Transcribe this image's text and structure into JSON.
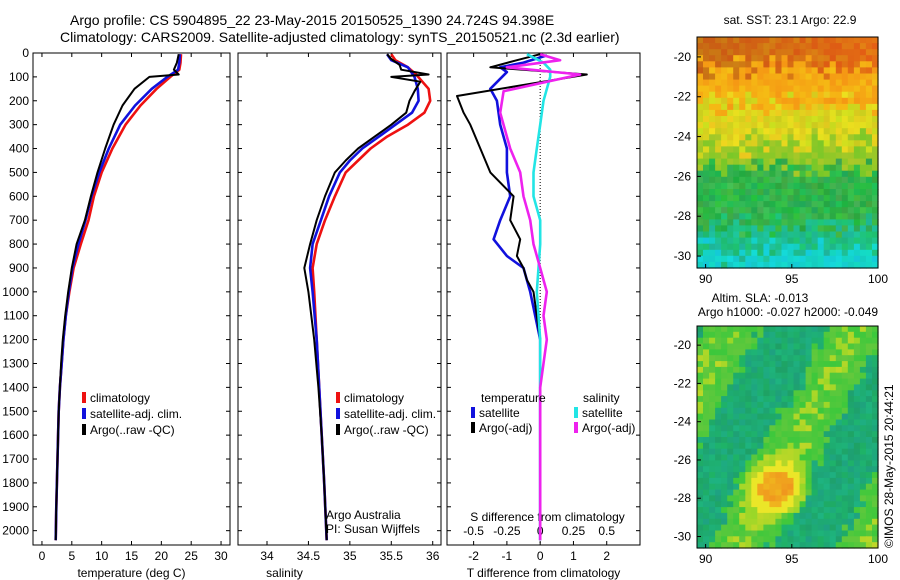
{
  "header": {
    "line1": "Argo profile: CS 5904895_22 23-May-2015 20150525_1390 24.724S 94.398E",
    "line2": "Climatology: CARS2009. Satellite-adjusted climatology: synTS_20150521.nc (2.3d earlier)"
  },
  "colors": {
    "red": "#ee1111",
    "blue": "#1111dd",
    "black": "#000000",
    "cyan": "#22e5e5",
    "magenta": "#ee22ee"
  },
  "chart_data": [
    {
      "id": "temperature",
      "type": "line",
      "xlabel": "temperature (deg C)",
      "xlim": [
        -1.5,
        31.5
      ],
      "ylim": [
        0,
        2060
      ],
      "xticks": [
        0,
        5,
        10,
        15,
        20,
        25,
        30
      ],
      "yticks": [
        0,
        100,
        200,
        300,
        400,
        500,
        600,
        700,
        800,
        900,
        1000,
        1100,
        1200,
        1300,
        1400,
        1500,
        1600,
        1700,
        1800,
        1900,
        2000
      ],
      "legend": {
        "placement": "middle-left",
        "entries": [
          "climatology",
          "satellite-adj. clim.",
          "Argo(..raw -QC)"
        ]
      },
      "series": [
        {
          "name": "climatology",
          "color": "red",
          "points": [
            [
              23.3,
              5
            ],
            [
              23.2,
              40
            ],
            [
              23.0,
              70
            ],
            [
              21.5,
              100
            ],
            [
              19.2,
              150
            ],
            [
              16.5,
              220
            ],
            [
              14.0,
              300
            ],
            [
              11.8,
              400
            ],
            [
              10.0,
              500
            ],
            [
              8.7,
              600
            ],
            [
              7.8,
              700
            ],
            [
              6.5,
              800
            ],
            [
              5.3,
              900
            ],
            [
              4.6,
              1000
            ],
            [
              4.0,
              1100
            ],
            [
              3.6,
              1200
            ],
            [
              3.3,
              1300
            ],
            [
              3.0,
              1400
            ],
            [
              2.8,
              1500
            ],
            [
              2.6,
              1700
            ],
            [
              2.4,
              1900
            ],
            [
              2.3,
              2040
            ]
          ]
        },
        {
          "name": "satellite-adj. clim.",
          "color": "blue",
          "points": [
            [
              23.1,
              5
            ],
            [
              23.0,
              40
            ],
            [
              22.8,
              70
            ],
            [
              21.0,
              100
            ],
            [
              18.4,
              150
            ],
            [
              15.6,
              220
            ],
            [
              13.1,
              300
            ],
            [
              11.2,
              400
            ],
            [
              9.6,
              500
            ],
            [
              8.3,
              600
            ],
            [
              7.3,
              700
            ],
            [
              6.1,
              800
            ],
            [
              5.1,
              900
            ],
            [
              4.5,
              1000
            ],
            [
              4.0,
              1100
            ],
            [
              3.6,
              1200
            ],
            [
              3.3,
              1300
            ],
            [
              3.0,
              1400
            ],
            [
              2.8,
              1500
            ],
            [
              2.6,
              1700
            ],
            [
              2.4,
              1900
            ],
            [
              2.3,
              2040
            ]
          ]
        },
        {
          "name": "Argo(..raw -QC)",
          "color": "black",
          "points": [
            [
              22.9,
              5
            ],
            [
              22.6,
              40
            ],
            [
              22.1,
              70
            ],
            [
              22.9,
              90
            ],
            [
              18.0,
              100
            ],
            [
              15.5,
              150
            ],
            [
              13.5,
              220
            ],
            [
              12.0,
              300
            ],
            [
              10.6,
              400
            ],
            [
              9.3,
              500
            ],
            [
              8.2,
              600
            ],
            [
              7.2,
              700
            ],
            [
              5.8,
              800
            ],
            [
              5.0,
              900
            ],
            [
              4.4,
              1000
            ],
            [
              3.9,
              1100
            ],
            [
              3.5,
              1200
            ],
            [
              3.2,
              1300
            ],
            [
              3.0,
              1400
            ],
            [
              2.8,
              1500
            ],
            [
              2.6,
              1700
            ],
            [
              2.4,
              1900
            ],
            [
              2.3,
              2040
            ]
          ]
        }
      ]
    },
    {
      "id": "salinity",
      "type": "line",
      "xlabel": "salinity",
      "xlim": [
        33.65,
        36.1
      ],
      "ylim": [
        0,
        2060
      ],
      "xticks": [
        34,
        34.5,
        35,
        35.5,
        36
      ],
      "legend": {
        "placement": "middle-right",
        "entries": [
          "climatology",
          "satellite-adj. clim.",
          "Argo(..raw -QC)"
        ]
      },
      "annotations": [
        "Argo Australia",
        "PI: Susan Wijffels"
      ],
      "series": [
        {
          "name": "climatology",
          "color": "red",
          "points": [
            [
              35.5,
              5
            ],
            [
              35.55,
              30
            ],
            [
              35.7,
              60
            ],
            [
              35.8,
              90
            ],
            [
              35.95,
              150
            ],
            [
              35.97,
              200
            ],
            [
              35.9,
              250
            ],
            [
              35.7,
              300
            ],
            [
              35.45,
              350
            ],
            [
              35.25,
              400
            ],
            [
              35.1,
              450
            ],
            [
              34.95,
              500
            ],
            [
              34.82,
              600
            ],
            [
              34.7,
              700
            ],
            [
              34.6,
              800
            ],
            [
              34.55,
              900
            ],
            [
              34.57,
              1000
            ],
            [
              34.6,
              1200
            ],
            [
              34.63,
              1400
            ],
            [
              34.66,
              1600
            ],
            [
              34.69,
              1800
            ],
            [
              34.72,
              2040
            ]
          ]
        },
        {
          "name": "satellite-adj. clim.",
          "color": "blue",
          "points": [
            [
              35.45,
              5
            ],
            [
              35.5,
              30
            ],
            [
              35.7,
              60
            ],
            [
              35.78,
              100
            ],
            [
              35.82,
              150
            ],
            [
              35.83,
              200
            ],
            [
              35.75,
              250
            ],
            [
              35.55,
              300
            ],
            [
              35.35,
              350
            ],
            [
              35.15,
              400
            ],
            [
              35.0,
              450
            ],
            [
              34.88,
              500
            ],
            [
              34.75,
              600
            ],
            [
              34.65,
              700
            ],
            [
              34.55,
              800
            ],
            [
              34.52,
              900
            ],
            [
              34.55,
              1000
            ],
            [
              34.6,
              1200
            ],
            [
              34.63,
              1400
            ],
            [
              34.66,
              1600
            ],
            [
              34.69,
              1800
            ],
            [
              34.72,
              2040
            ]
          ]
        },
        {
          "name": "Argo(..raw -QC)",
          "color": "black",
          "points": [
            [
              35.45,
              5
            ],
            [
              35.5,
              25
            ],
            [
              35.6,
              50
            ],
            [
              35.62,
              70
            ],
            [
              35.95,
              90
            ],
            [
              35.5,
              100
            ],
            [
              35.85,
              120
            ],
            [
              35.78,
              160
            ],
            [
              35.72,
              200
            ],
            [
              35.68,
              250
            ],
            [
              35.5,
              300
            ],
            [
              35.3,
              350
            ],
            [
              35.1,
              400
            ],
            [
              34.95,
              450
            ],
            [
              34.82,
              500
            ],
            [
              34.7,
              600
            ],
            [
              34.6,
              700
            ],
            [
              34.52,
              800
            ],
            [
              34.45,
              900
            ],
            [
              34.5,
              1000
            ],
            [
              34.57,
              1200
            ],
            [
              34.62,
              1400
            ],
            [
              34.66,
              1600
            ],
            [
              34.69,
              1800
            ],
            [
              34.72,
              2040
            ]
          ]
        }
      ]
    },
    {
      "id": "difference",
      "type": "line",
      "xlabel": "T difference from climatology",
      "xlabel_top": "S difference from climatology",
      "xlim": [
        -2.8,
        3.0
      ],
      "ylim": [
        0,
        2060
      ],
      "xticks": [
        -2,
        -1,
        0,
        1,
        2
      ],
      "xticks_s": [
        {
          "v": -2,
          "label": "-0.5"
        },
        {
          "v": -1,
          "label": "-0.25"
        },
        {
          "v": 0,
          "label": "0"
        },
        {
          "v": 1,
          "label": "0.25"
        },
        {
          "v": 2,
          "label": "0.5"
        }
      ],
      "legend": {
        "placement": "middle",
        "groups": [
          {
            "title": "temperature",
            "entries": [
              "satellite",
              "Argo(-adj)"
            ]
          },
          {
            "title": "salinity",
            "entries": [
              "satellite",
              "Argo(-adj)"
            ]
          }
        ]
      },
      "series": [
        {
          "name": "temperature satellite",
          "color": "blue",
          "points": [
            [
              0.2,
              10
            ],
            [
              -0.5,
              40
            ],
            [
              -1.2,
              60
            ],
            [
              -1.0,
              80
            ],
            [
              -1.5,
              150
            ],
            [
              -1.3,
              200
            ],
            [
              -1.2,
              300
            ],
            [
              -1.0,
              400
            ],
            [
              -1.0,
              500
            ],
            [
              -0.9,
              600
            ],
            [
              -1.2,
              700
            ],
            [
              -1.4,
              780
            ],
            [
              -1.0,
              850
            ],
            [
              -0.5,
              900
            ],
            [
              -0.3,
              1000
            ],
            [
              0,
              1200
            ],
            [
              0,
              2040
            ]
          ]
        },
        {
          "name": "temperature Argo(-adj)",
          "color": "black",
          "points": [
            [
              0,
              5
            ],
            [
              -0.7,
              30
            ],
            [
              -1.5,
              60
            ],
            [
              1.4,
              90
            ],
            [
              -2.5,
              180
            ],
            [
              -2.3,
              250
            ],
            [
              -2.1,
              300
            ],
            [
              -1.8,
              400
            ],
            [
              -1.5,
              500
            ],
            [
              -0.8,
              600
            ],
            [
              -0.9,
              700
            ],
            [
              -0.6,
              780
            ],
            [
              -0.7,
              850
            ],
            [
              -0.5,
              900
            ],
            [
              -0.4,
              950
            ],
            [
              -0.2,
              1000
            ],
            [
              -0.1,
              1100
            ],
            [
              0,
              1200
            ],
            [
              0,
              2040
            ]
          ]
        },
        {
          "name": "salinity satellite",
          "color": "cyan",
          "points": [
            [
              -0.4,
              5
            ],
            [
              0.1,
              40
            ],
            [
              0.3,
              70
            ],
            [
              0.3,
              100
            ],
            [
              0.1,
              200
            ],
            [
              0,
              300
            ],
            [
              -0.1,
              400
            ],
            [
              -0.2,
              500
            ],
            [
              -0.2,
              600
            ],
            [
              0,
              700
            ],
            [
              0,
              800
            ],
            [
              -0.1,
              1000
            ],
            [
              0,
              1200
            ],
            [
              0,
              1400
            ],
            [
              0,
              2040
            ]
          ]
        },
        {
          "name": "salinity Argo(-adj)",
          "color": "magenta",
          "points": [
            [
              0,
              5
            ],
            [
              0.6,
              30
            ],
            [
              -1.0,
              60
            ],
            [
              1.2,
              90
            ],
            [
              -1.1,
              160
            ],
            [
              -1.2,
              250
            ],
            [
              -0.9,
              400
            ],
            [
              -0.6,
              500
            ],
            [
              -0.5,
              600
            ],
            [
              -0.3,
              700
            ],
            [
              -0.2,
              800
            ],
            [
              0,
              900
            ],
            [
              0.2,
              1000
            ],
            [
              0.1,
              1100
            ],
            [
              0.2,
              1200
            ],
            [
              0.1,
              1300
            ],
            [
              0,
              1400
            ],
            [
              0,
              2040
            ]
          ]
        }
      ]
    },
    {
      "id": "sst_map",
      "type": "heatmap",
      "title": "sat. SST: 23.1 Argo: 22.9",
      "xlim": [
        89.5,
        100
      ],
      "ylim": [
        -30.6,
        -19
      ],
      "xticks": [
        90,
        95,
        100
      ],
      "yticks": [
        -20,
        -22,
        -24,
        -26,
        -28,
        -30
      ]
    },
    {
      "id": "sla_map",
      "type": "heatmap",
      "title_lines": [
        "Altim. SLA: -0.013",
        "Argo h1000: -0.027 h2000: -0.049"
      ],
      "xlim": [
        89.5,
        100
      ],
      "ylim": [
        -30.6,
        -19
      ],
      "xticks": [
        90,
        95,
        100
      ],
      "yticks": [
        -20,
        -22,
        -24,
        -26,
        -28,
        -30
      ]
    }
  ],
  "side_label": "©IMOS 28-May-2015 20:44:21"
}
